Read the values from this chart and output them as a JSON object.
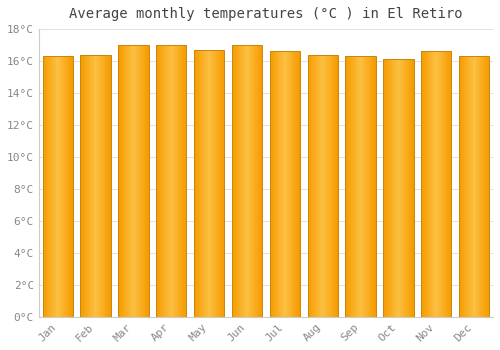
{
  "title": "Average monthly temperatures (°C ) in El Retiro",
  "months": [
    "Jan",
    "Feb",
    "Mar",
    "Apr",
    "May",
    "Jun",
    "Jul",
    "Aug",
    "Sep",
    "Oct",
    "Nov",
    "Dec"
  ],
  "values": [
    16.3,
    16.4,
    17.0,
    17.0,
    16.7,
    17.0,
    16.6,
    16.4,
    16.3,
    16.1,
    16.6,
    16.3
  ],
  "ylim": [
    0,
    18
  ],
  "yticks": [
    0,
    2,
    4,
    6,
    8,
    10,
    12,
    14,
    16,
    18
  ],
  "bar_color_center": "#FCC042",
  "bar_color_edge": "#F59B00",
  "bar_border_color": "#C8860A",
  "background_color": "#FFFFFF",
  "grid_color": "#E0E0E0",
  "title_fontsize": 10,
  "tick_fontsize": 8,
  "font_family": "monospace",
  "tick_color": "#888888",
  "bar_width": 0.8
}
